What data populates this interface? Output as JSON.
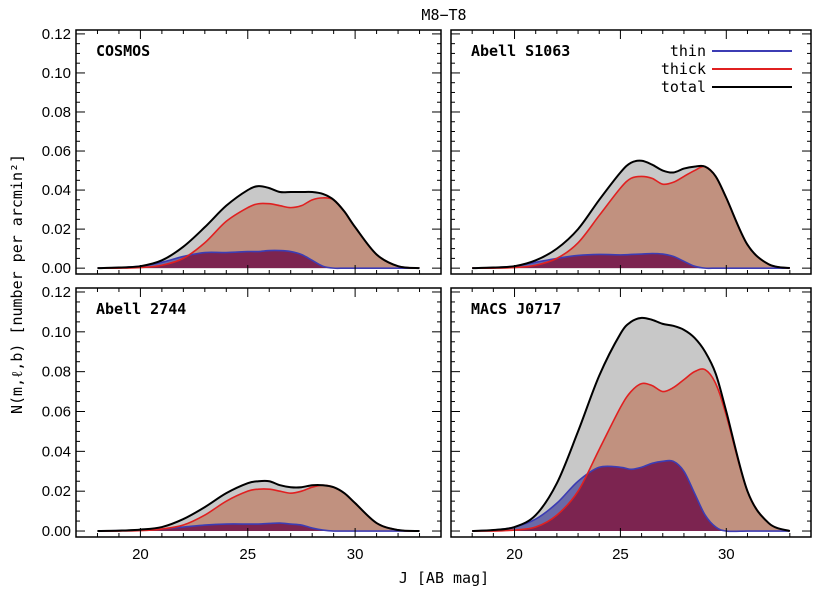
{
  "figure": {
    "title": "M8−T8",
    "xlabel": "J [AB mag]",
    "ylabel": "N(m,ℓ,b) [number per arcmin²]"
  },
  "legend": {
    "placement": "top-right of top-right panel",
    "entries": [
      {
        "label": "thin",
        "color": "#3c3cb4"
      },
      {
        "label": "thick",
        "color": "#e02020"
      },
      {
        "label": "total",
        "color": "#000000"
      }
    ]
  },
  "fills": {
    "total": "#c8c8c8",
    "thick": "#c08c78",
    "thin": "#7c2450",
    "thin_only": "#6a6aa8"
  },
  "chart_data": [
    {
      "type": "area",
      "panel": "COSMOS",
      "label": "COSMOS",
      "xlim": [
        17,
        34
      ],
      "ylim": [
        -0.003,
        0.122
      ],
      "xticks": [
        20,
        25,
        30
      ],
      "xtick_labels": [
        "20",
        "25",
        "30"
      ],
      "yticks": [
        0.0,
        0.02,
        0.04,
        0.06,
        0.08,
        0.1,
        0.12
      ],
      "ytick_labels": [
        "0.00",
        "0.02",
        "0.04",
        "0.06",
        "0.08",
        "0.10",
        "0.12"
      ],
      "x": [
        18,
        19,
        20,
        21,
        22,
        23,
        24,
        25,
        25.5,
        26,
        26.5,
        27,
        27.5,
        28,
        28.5,
        29,
        29.5,
        30,
        31,
        32,
        33
      ],
      "series": [
        {
          "name": "total",
          "values": [
            0,
            0.0003,
            0.001,
            0.004,
            0.011,
            0.021,
            0.032,
            0.04,
            0.042,
            0.041,
            0.039,
            0.039,
            0.039,
            0.039,
            0.038,
            0.035,
            0.029,
            0.021,
            0.007,
            0.001,
            0
          ]
        },
        {
          "name": "thick",
          "values": [
            0,
            0,
            0.0003,
            0.0015,
            0.005,
            0.013,
            0.024,
            0.031,
            0.033,
            0.033,
            0.032,
            0.031,
            0.032,
            0.035,
            0.036,
            0.035,
            0.029,
            0.021,
            0.007,
            0.001,
            0
          ]
        },
        {
          "name": "thin",
          "values": [
            0,
            0.0003,
            0.001,
            0.003,
            0.006,
            0.008,
            0.008,
            0.0085,
            0.0085,
            0.009,
            0.009,
            0.0085,
            0.007,
            0.004,
            0.001,
            0,
            0,
            0,
            0,
            0,
            0
          ]
        }
      ]
    },
    {
      "type": "area",
      "panel": "Abell S1063",
      "label": "Abell S1063",
      "xlim": [
        17,
        34
      ],
      "ylim": [
        -0.003,
        0.122
      ],
      "xticks": [
        20,
        25,
        30
      ],
      "xtick_labels": [
        "20",
        "25",
        "30"
      ],
      "yticks": [
        0.0,
        0.02,
        0.04,
        0.06,
        0.08,
        0.1,
        0.12
      ],
      "ytick_labels": [
        "0.00",
        "0.02",
        "0.04",
        "0.06",
        "0.08",
        "0.10",
        "0.12"
      ],
      "x": [
        18,
        19,
        20,
        21,
        22,
        23,
        24,
        25,
        25.5,
        26,
        26.5,
        27,
        27.5,
        28,
        28.5,
        29,
        29.5,
        30,
        31,
        32,
        33
      ],
      "series": [
        {
          "name": "total",
          "values": [
            0,
            0.0003,
            0.001,
            0.004,
            0.01,
            0.02,
            0.035,
            0.049,
            0.054,
            0.055,
            0.053,
            0.05,
            0.049,
            0.051,
            0.052,
            0.052,
            0.047,
            0.036,
            0.012,
            0.002,
            0
          ]
        },
        {
          "name": "thick",
          "values": [
            0,
            0,
            0.0003,
            0.0015,
            0.005,
            0.013,
            0.027,
            0.041,
            0.046,
            0.047,
            0.046,
            0.043,
            0.044,
            0.047,
            0.05,
            0.052,
            0.047,
            0.036,
            0.012,
            0.002,
            0
          ]
        },
        {
          "name": "thin",
          "values": [
            0,
            0.0003,
            0.001,
            0.003,
            0.005,
            0.0065,
            0.007,
            0.0068,
            0.007,
            0.0072,
            0.0075,
            0.0072,
            0.006,
            0.0035,
            0.001,
            0,
            0,
            0,
            0,
            0,
            0
          ]
        }
      ]
    },
    {
      "type": "area",
      "panel": "Abell 2744",
      "label": "Abell 2744",
      "xlim": [
        17,
        34
      ],
      "ylim": [
        -0.003,
        0.122
      ],
      "xticks": [
        20,
        25,
        30
      ],
      "xtick_labels": [
        "20",
        "25",
        "30"
      ],
      "yticks": [
        0.0,
        0.02,
        0.04,
        0.06,
        0.08,
        0.1,
        0.12
      ],
      "ytick_labels": [
        "0.00",
        "0.02",
        "0.04",
        "0.06",
        "0.08",
        "0.10",
        "0.12"
      ],
      "x": [
        18,
        19,
        20,
        21,
        22,
        23,
        24,
        25,
        25.5,
        26,
        26.5,
        27,
        27.5,
        28,
        28.5,
        29,
        29.5,
        30,
        31,
        32,
        33
      ],
      "series": [
        {
          "name": "total",
          "values": [
            0,
            0.0002,
            0.0007,
            0.002,
            0.006,
            0.012,
            0.019,
            0.024,
            0.025,
            0.025,
            0.023,
            0.022,
            0.022,
            0.023,
            0.023,
            0.022,
            0.019,
            0.014,
            0.004,
            0.0005,
            0
          ]
        },
        {
          "name": "thick",
          "values": [
            0,
            0,
            0.0002,
            0.001,
            0.003,
            0.008,
            0.015,
            0.02,
            0.021,
            0.021,
            0.02,
            0.019,
            0.02,
            0.022,
            0.023,
            0.022,
            0.019,
            0.014,
            0.004,
            0.0005,
            0
          ]
        },
        {
          "name": "thin",
          "values": [
            0,
            0.0002,
            0.0005,
            0.001,
            0.002,
            0.003,
            0.0035,
            0.0035,
            0.0035,
            0.0038,
            0.004,
            0.0035,
            0.003,
            0.0015,
            0.0005,
            0,
            0,
            0,
            0,
            0,
            0
          ]
        }
      ]
    },
    {
      "type": "area",
      "panel": "MACS J0717",
      "label": "MACS J0717",
      "xlim": [
        17,
        34
      ],
      "ylim": [
        -0.003,
        0.122
      ],
      "xticks": [
        20,
        25,
        30
      ],
      "xtick_labels": [
        "20",
        "25",
        "30"
      ],
      "yticks": [
        0.0,
        0.02,
        0.04,
        0.06,
        0.08,
        0.1,
        0.12
      ],
      "ytick_labels": [
        "0.00",
        "0.02",
        "0.04",
        "0.06",
        "0.08",
        "0.10",
        "0.12"
      ],
      "x": [
        18,
        19,
        20,
        21,
        22,
        23,
        24,
        25,
        25.5,
        26,
        26.5,
        27,
        27.5,
        28,
        28.5,
        29,
        29.5,
        30,
        31,
        32,
        33
      ],
      "series": [
        {
          "name": "total",
          "values": [
            0,
            0.0005,
            0.002,
            0.008,
            0.024,
            0.05,
            0.078,
            0.099,
            0.105,
            0.107,
            0.106,
            0.104,
            0.103,
            0.101,
            0.097,
            0.09,
            0.079,
            0.06,
            0.02,
            0.004,
            0
          ]
        },
        {
          "name": "thick",
          "values": [
            0,
            0,
            0.0005,
            0.002,
            0.008,
            0.02,
            0.041,
            0.062,
            0.07,
            0.074,
            0.073,
            0.07,
            0.072,
            0.076,
            0.08,
            0.081,
            0.074,
            0.058,
            0.02,
            0.004,
            0
          ]
        },
        {
          "name": "thin",
          "values": [
            0,
            0.0005,
            0.002,
            0.006,
            0.014,
            0.025,
            0.032,
            0.032,
            0.031,
            0.032,
            0.034,
            0.035,
            0.035,
            0.03,
            0.019,
            0.008,
            0.002,
            0,
            0,
            0,
            0
          ]
        }
      ]
    }
  ]
}
